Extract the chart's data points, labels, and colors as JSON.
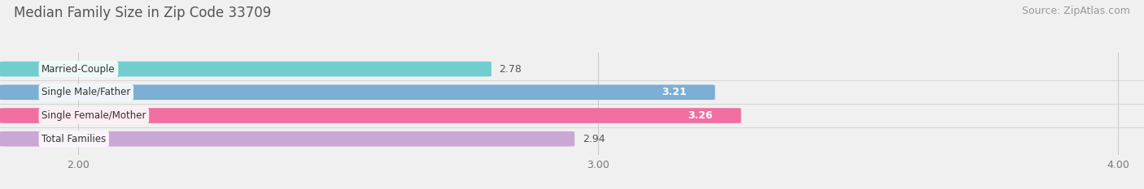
{
  "title": "Median Family Size in Zip Code 33709",
  "source": "Source: ZipAtlas.com",
  "categories": [
    "Married-Couple",
    "Single Male/Father",
    "Single Female/Mother",
    "Total Families"
  ],
  "values": [
    2.78,
    3.21,
    3.26,
    2.94
  ],
  "bar_colors": [
    "#72cece",
    "#7bafd4",
    "#f06fa0",
    "#c9a8d4"
  ],
  "value_inside": [
    false,
    true,
    true,
    false
  ],
  "xlim_min": 1.85,
  "xlim_max": 4.05,
  "xticks": [
    2.0,
    3.0,
    4.0
  ],
  "xtick_labels": [
    "2.00",
    "3.00",
    "4.00"
  ],
  "bar_height": 0.62,
  "bar_gap": 0.38,
  "background_color": "#f0f0f0",
  "title_color": "#555555",
  "title_fontsize": 12,
  "source_fontsize": 9,
  "label_fontsize": 8.5,
  "value_fontsize": 9
}
